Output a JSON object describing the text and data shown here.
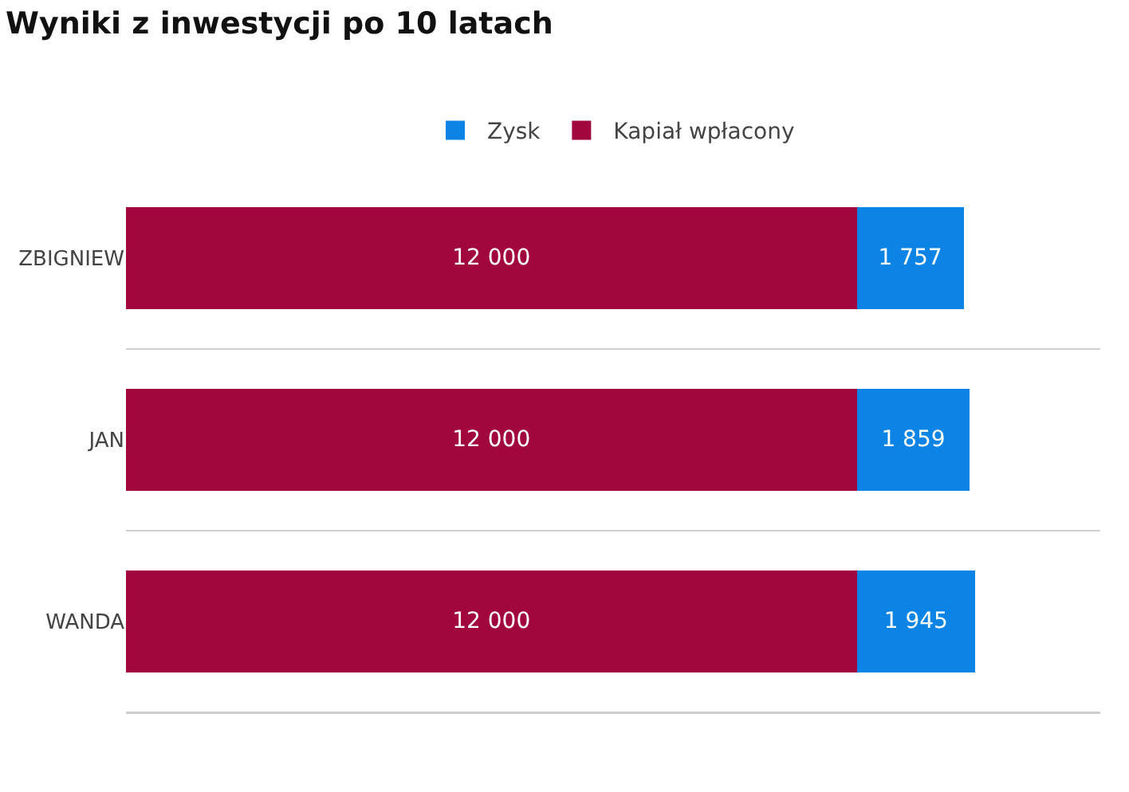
{
  "chart_data": {
    "type": "bar",
    "title": "Wyniki z inwestycji po 10 latach",
    "orientation": "horizontal",
    "stacked": true,
    "categories": [
      "ZBIGNIEW",
      "JAN",
      "WANDA"
    ],
    "series": [
      {
        "name": "Kapiał wpłacony",
        "color": "#a1063f",
        "values": [
          12000,
          12000,
          12000
        ],
        "value_labels": [
          "12 000",
          "12 000",
          "12 000"
        ]
      },
      {
        "name": "Zysk",
        "color": "#0b84e6",
        "values": [
          1757,
          1859,
          1945
        ],
        "value_labels": [
          "1 757",
          "1 859",
          "1 945"
        ]
      }
    ],
    "xlim": [
      0,
      16000
    ],
    "tick_labels": "y",
    "grid": "y",
    "legend": "top"
  }
}
